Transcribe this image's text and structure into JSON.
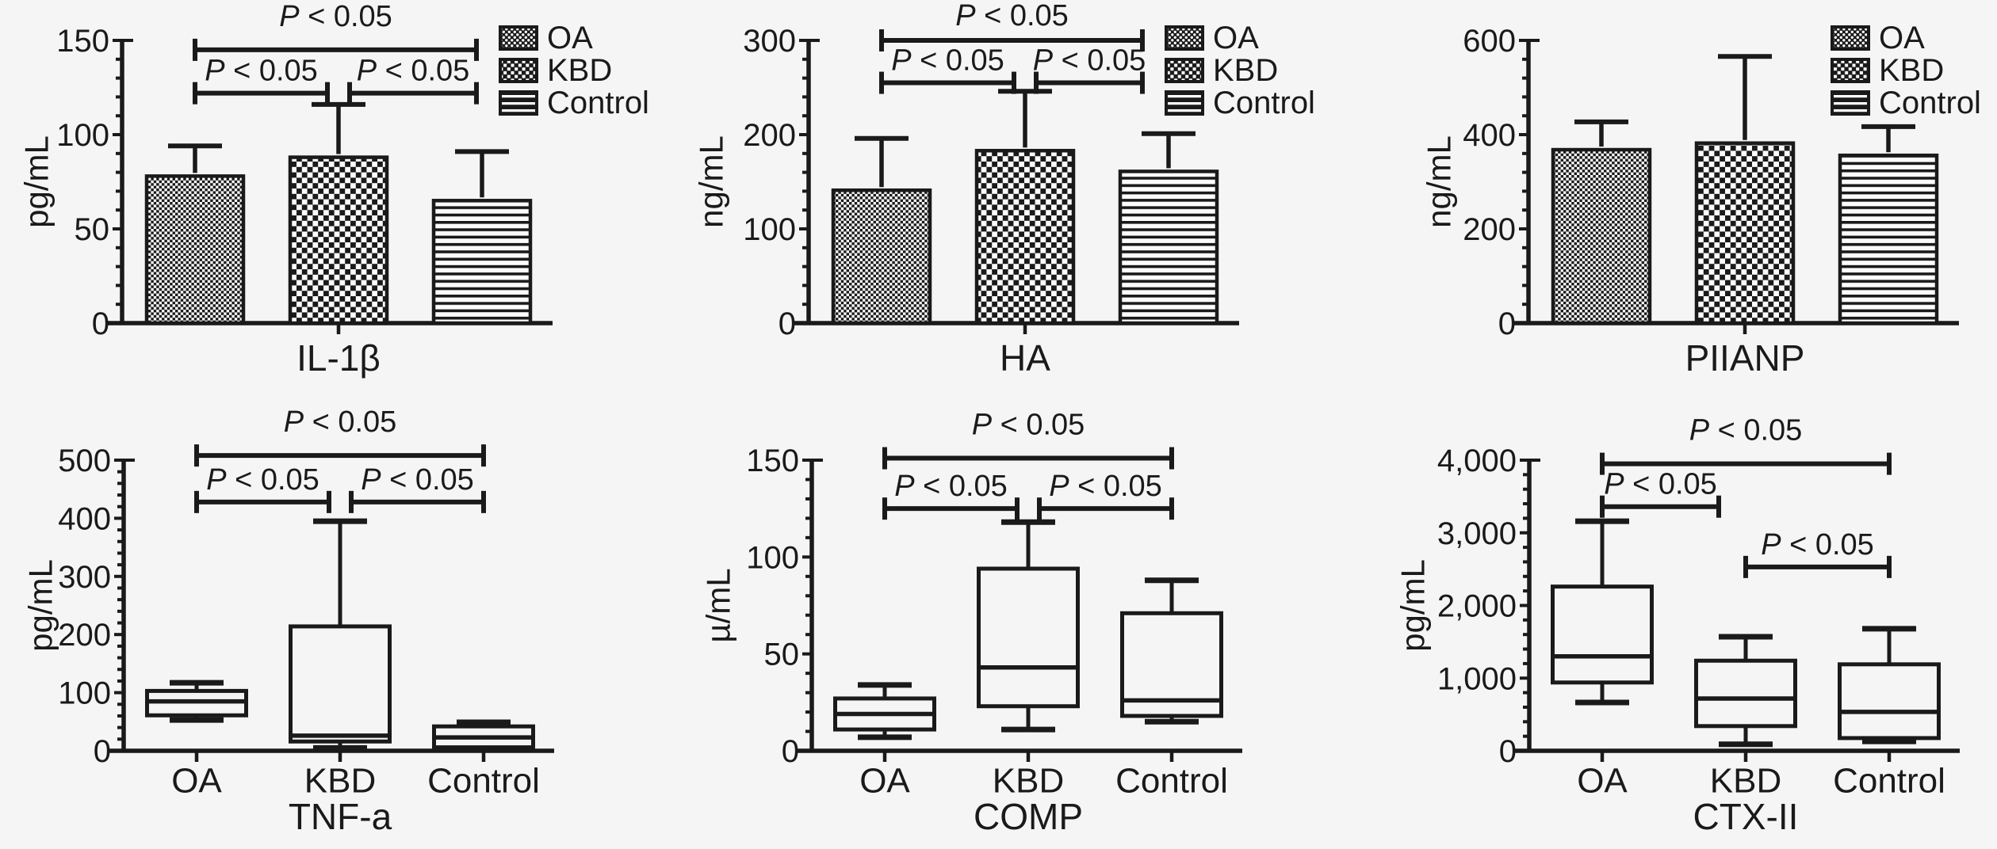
{
  "figure": {
    "background_color": "#f5f5f5",
    "ink_color": "#1a1a1a",
    "significance_label": "P < 0.05"
  },
  "legend": {
    "entries": [
      {
        "label": "OA",
        "pattern": "fine-checker"
      },
      {
        "label": "KBD",
        "pattern": "coarse-checker"
      },
      {
        "label": "Control",
        "pattern": "horizontal-lines"
      }
    ]
  },
  "chart_data": [
    {
      "type": "bar",
      "title": "IL-1β",
      "ylabel": "pg/mL",
      "ylim": [
        0,
        150
      ],
      "ytick_step": 50,
      "yminor_step": 10,
      "ytick_labels": [
        "0",
        "50",
        "100",
        "150"
      ],
      "categories": [
        "OA",
        "KBD",
        "Control"
      ],
      "series": [
        {
          "name": "mean",
          "values": [
            78,
            88,
            65
          ]
        },
        {
          "name": "sd",
          "values": [
            16,
            28,
            26
          ]
        }
      ],
      "legend_shown": true,
      "category_labels_shown": false,
      "grid": false,
      "significance": [
        {
          "from": "OA",
          "to": "Control",
          "label": "P < 0.05",
          "level": 145
        },
        {
          "from": "OA",
          "to": "KBD",
          "label": "P < 0.05",
          "level": 122
        },
        {
          "from": "KBD",
          "to": "Control",
          "label": "P < 0.05",
          "level": 122
        }
      ]
    },
    {
      "type": "bar",
      "title": "HA",
      "ylabel": "ng/mL",
      "ylim": [
        0,
        300
      ],
      "ytick_step": 100,
      "yminor_step": 20,
      "ytick_labels": [
        "0",
        "100",
        "200",
        "300"
      ],
      "categories": [
        "OA",
        "KBD",
        "Control"
      ],
      "series": [
        {
          "name": "mean",
          "values": [
            141,
            183,
            161
          ]
        },
        {
          "name": "sd",
          "values": [
            55,
            63,
            40
          ]
        }
      ],
      "legend_shown": true,
      "category_labels_shown": false,
      "grid": false,
      "significance": [
        {
          "from": "OA",
          "to": "Control",
          "label": "P < 0.05",
          "level": 300
        },
        {
          "from": "OA",
          "to": "KBD",
          "label": "P < 0.05",
          "level": 255
        },
        {
          "from": "KBD",
          "to": "Control",
          "label": "P < 0.05",
          "level": 255
        }
      ]
    },
    {
      "type": "bar",
      "title": "PIIANP",
      "ylabel": "ng/mL",
      "ylim": [
        0,
        600
      ],
      "ytick_step": 200,
      "yminor_step": 40,
      "ytick_labels": [
        "0",
        "200",
        "400",
        "600"
      ],
      "categories": [
        "OA",
        "KBD",
        "Control"
      ],
      "series": [
        {
          "name": "mean",
          "values": [
            368,
            382,
            356
          ]
        },
        {
          "name": "sd",
          "values": [
            59,
            184,
            61
          ]
        }
      ],
      "legend_shown": true,
      "category_labels_shown": false,
      "grid": false,
      "significance": []
    },
    {
      "type": "box",
      "title": "TNF-a",
      "ylabel": "pg/mL",
      "ylim": [
        0,
        500
      ],
      "ytick_step": 100,
      "yminor_step": 20,
      "ytick_labels": [
        "0",
        "100",
        "200",
        "300",
        "400",
        "500"
      ],
      "categories": [
        "OA",
        "KBD",
        "Control"
      ],
      "boxes": [
        {
          "category": "OA",
          "whislo": 53,
          "q1": 61,
          "med": 85,
          "q3": 103,
          "whishi": 117
        },
        {
          "category": "KBD",
          "whislo": 5,
          "q1": 16,
          "med": 26,
          "q3": 214,
          "whishi": 395
        },
        {
          "category": "Control",
          "whislo": 2,
          "q1": 6,
          "med": 23,
          "q3": 42,
          "whishi": 49
        }
      ],
      "legend_shown": false,
      "category_labels_shown": true,
      "grid": false,
      "significance": [
        {
          "from": "OA",
          "to": "Control",
          "label": "P < 0.05",
          "level": 508
        },
        {
          "from": "OA",
          "to": "KBD",
          "label": "P < 0.05",
          "level": 428
        },
        {
          "from": "KBD",
          "to": "Control",
          "label": "P < 0.05",
          "level": 428
        }
      ]
    },
    {
      "type": "box",
      "title": "COMP",
      "ylabel": "µ/mL",
      "ylim": [
        0,
        150
      ],
      "ytick_step": 50,
      "yminor_step": 10,
      "ytick_labels": [
        "0",
        "50",
        "100",
        "150"
      ],
      "categories": [
        "OA",
        "KBD",
        "Control"
      ],
      "boxes": [
        {
          "category": "OA",
          "whislo": 7,
          "q1": 11,
          "med": 19,
          "q3": 27,
          "whishi": 34
        },
        {
          "category": "KBD",
          "whislo": 11,
          "q1": 23,
          "med": 43,
          "q3": 94,
          "whishi": 118
        },
        {
          "category": "Control",
          "whislo": 15,
          "q1": 18,
          "med": 26,
          "q3": 71,
          "whishi": 88
        }
      ],
      "legend_shown": false,
      "category_labels_shown": true,
      "grid": false,
      "significance": [
        {
          "from": "OA",
          "to": "Control",
          "label": "P < 0.05",
          "level": 151
        },
        {
          "from": "OA",
          "to": "KBD",
          "label": "P < 0.05",
          "level": 125
        },
        {
          "from": "KBD",
          "to": "Control",
          "label": "P < 0.05",
          "level": 125
        }
      ]
    },
    {
      "type": "box",
      "title": "CTX-II",
      "ylabel": "pg/mL",
      "ylim": [
        0,
        4000
      ],
      "ytick_step": 1000,
      "yminor_step": 200,
      "ytick_labels": [
        "0",
        "1,000",
        "2,000",
        "3,000",
        "4,000"
      ],
      "categories": [
        "OA",
        "KBD",
        "Control"
      ],
      "boxes": [
        {
          "category": "OA",
          "whislo": 665,
          "q1": 940,
          "med": 1300,
          "q3": 2260,
          "whishi": 3160
        },
        {
          "category": "KBD",
          "whislo": 90,
          "q1": 340,
          "med": 720,
          "q3": 1240,
          "whishi": 1570
        },
        {
          "category": "Control",
          "whislo": 130,
          "q1": 175,
          "med": 535,
          "q3": 1190,
          "whishi": 1680
        }
      ],
      "legend_shown": false,
      "category_labels_shown": true,
      "grid": false,
      "significance": [
        {
          "from": "OA",
          "to": "Control",
          "label": "P < 0.05",
          "level": 3950
        },
        {
          "from": "OA",
          "to": "KBD",
          "label": "P < 0.05",
          "level": 3360,
          "right_inset": 34
        },
        {
          "from": "KBD",
          "to": "Control",
          "label": "P < 0.05",
          "level": 2530
        }
      ]
    }
  ]
}
